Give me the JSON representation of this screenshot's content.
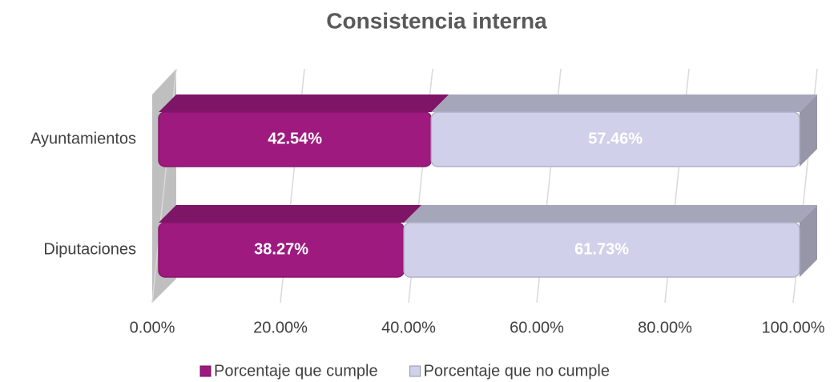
{
  "chart_data": {
    "type": "bar",
    "orientation": "horizontal",
    "stacked": true,
    "title": "Consistencia interna",
    "categories": [
      "Ayuntamientos",
      "Diputaciones"
    ],
    "series": [
      {
        "name": "Porcentaje que cumple",
        "color": "#9e1a7f",
        "values": [
          42.54,
          38.27
        ],
        "value_labels": [
          "42.54%",
          "38.27%"
        ]
      },
      {
        "name": "Porcentaje que no cumple",
        "color": "#d0d0ea",
        "values": [
          57.46,
          61.73
        ],
        "value_labels": [
          "57.46%",
          "61.73%"
        ]
      }
    ],
    "xlim": [
      0,
      100
    ],
    "xticks": [
      {
        "value": 0,
        "label": "0.00%"
      },
      {
        "value": 20,
        "label": "20.00%"
      },
      {
        "value": 40,
        "label": "40.00%"
      },
      {
        "value": 60,
        "label": "60.00%"
      },
      {
        "value": 80,
        "label": "80.00%"
      },
      {
        "value": 100,
        "label": "100.00%"
      }
    ],
    "grid": true,
    "legend": "bottom"
  }
}
